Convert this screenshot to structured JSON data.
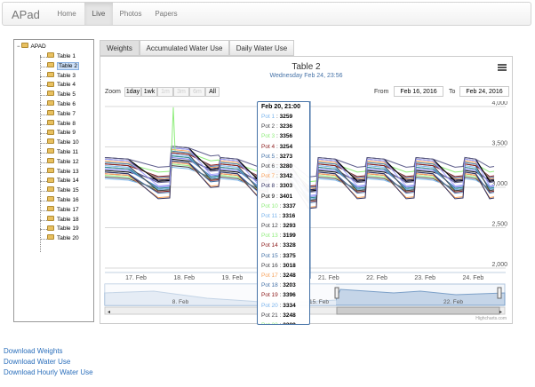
{
  "nav": {
    "brand": "APad",
    "links": [
      "Home",
      "Live",
      "Photos",
      "Papers"
    ],
    "active": "Live"
  },
  "tree": {
    "root": "APAD",
    "items": [
      "Table 1",
      "Table 2",
      "Table 3",
      "Table 4",
      "Table 5",
      "Table 6",
      "Table 7",
      "Table 8",
      "Table 9",
      "Table 10",
      "Table 11",
      "Table 12",
      "Table 13",
      "Table 14",
      "Table 15",
      "Table 16",
      "Table 17",
      "Table 18",
      "Table 19",
      "Table 20"
    ],
    "selected": "Table 2"
  },
  "tabs": [
    "Weights",
    "Accumulated Water Use",
    "Daily Water Use"
  ],
  "chart": {
    "title": "Table 2",
    "subtitle": "Wednesday Feb 24, 23:56",
    "zoom_label": "Zoom",
    "zoom_buttons": [
      {
        "label": "1day",
        "enabled": true
      },
      {
        "label": "1wk",
        "enabled": true
      },
      {
        "label": "1m",
        "enabled": false
      },
      {
        "label": "3m",
        "enabled": false
      },
      {
        "label": "6m",
        "enabled": false
      },
      {
        "label": "All",
        "enabled": true
      }
    ],
    "from_label": "From",
    "from_value": "Feb 16, 2016",
    "to_label": "To",
    "to_value": "Feb 24, 2016",
    "credit": "Highcharts.com"
  },
  "tooltip": {
    "header": "Feb 20, 21:00",
    "rows": [
      {
        "name": "Pot 1",
        "value": "3259",
        "color": "#7cb5ec"
      },
      {
        "name": "Pot 2",
        "value": "3236",
        "color": "#434348"
      },
      {
        "name": "Pot 3",
        "value": "3356",
        "color": "#90ed7d"
      },
      {
        "name": "Pot 4",
        "value": "3254",
        "color": "#8b1a1a"
      },
      {
        "name": "Pot 5",
        "value": "3273",
        "color": "#4572a7"
      },
      {
        "name": "Pot 6",
        "value": "3280",
        "color": "#434348"
      },
      {
        "name": "Pot 7",
        "value": "3342",
        "color": "#f7a35c"
      },
      {
        "name": "Pot 8",
        "value": "3303",
        "color": "#2f2f5f"
      },
      {
        "name": "Pot 9",
        "value": "3401",
        "color": "#000000"
      },
      {
        "name": "Pot 10",
        "value": "3337",
        "color": "#90ed7d"
      },
      {
        "name": "Pot 11",
        "value": "3316",
        "color": "#7cb5ec"
      },
      {
        "name": "Pot 12",
        "value": "3293",
        "color": "#434348"
      },
      {
        "name": "Pot 13",
        "value": "3199",
        "color": "#90ed7d"
      },
      {
        "name": "Pot 14",
        "value": "3328",
        "color": "#8b1a1a"
      },
      {
        "name": "Pot 15",
        "value": "3375",
        "color": "#4572a7"
      },
      {
        "name": "Pot 16",
        "value": "3018",
        "color": "#434348"
      },
      {
        "name": "Pot 17",
        "value": "3248",
        "color": "#f7a35c"
      },
      {
        "name": "Pot 18",
        "value": "3203",
        "color": "#4572a7"
      },
      {
        "name": "Pot 19",
        "value": "3396",
        "color": "#8b1a1a"
      },
      {
        "name": "Pot 20",
        "value": "3334",
        "color": "#7cb5ec"
      },
      {
        "name": "Pot 21",
        "value": "3248",
        "color": "#434348"
      },
      {
        "name": "Pot 22",
        "value": "3389",
        "color": "#90ed7d"
      }
    ]
  },
  "chart_data": {
    "type": "line",
    "y_ticks": [
      "2,000",
      "2,500",
      "3,000",
      "3,500",
      "4,000"
    ],
    "ylim": [
      2000,
      4000
    ],
    "x_ticks": [
      "17. Feb",
      "18. Feb",
      "19. Feb",
      "20. Feb",
      "21. Feb",
      "22. Feb",
      "23. Feb",
      "24. Feb"
    ],
    "navigator_ticks": [
      "8. Feb",
      "15. Feb",
      "22. Feb"
    ],
    "grid": true,
    "tooltip_x": "Feb 20, 21:00",
    "series_colors": [
      "#7cb5ec",
      "#434348",
      "#90ed7d",
      "#8b1a1a",
      "#4572a7",
      "#f7a35c",
      "#2f2f5f",
      "#000000",
      "#a0a0ff",
      "#5c5c8a",
      "#8085e9",
      "#2b908f"
    ]
  },
  "downloads": [
    "Download Weights",
    "Download Water Use",
    "Download Hourly Water Use"
  ]
}
